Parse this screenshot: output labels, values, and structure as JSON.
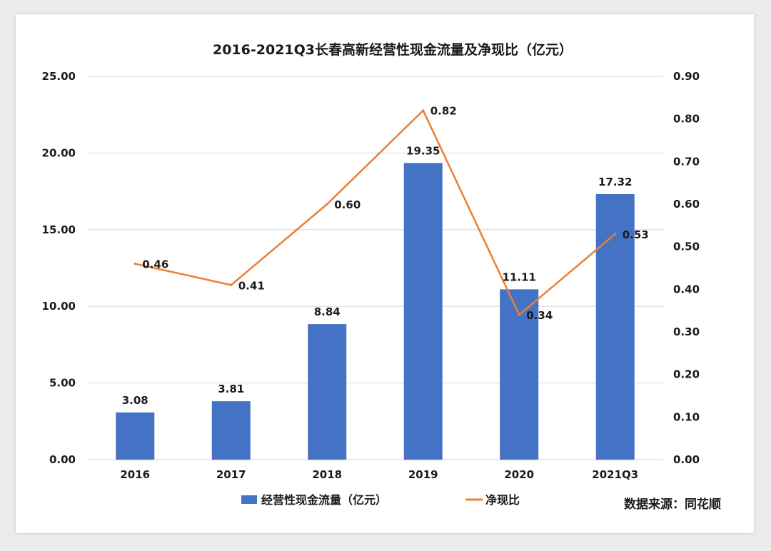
{
  "chart_data": {
    "type": "bar",
    "title": "2016-2021Q3长春高新经营性现金流量及净现比（亿元）",
    "categories": [
      "2016",
      "2017",
      "2018",
      "2019",
      "2020",
      "2021Q3"
    ],
    "series": [
      {
        "name": "经营性现金流量（亿元）",
        "type": "bar",
        "axis": "left",
        "color": "#4472c4",
        "values": [
          3.08,
          3.81,
          8.84,
          19.35,
          11.11,
          17.32
        ],
        "labels": [
          "3.08",
          "3.81",
          "8.84",
          "19.35",
          "11.11",
          "17.32"
        ]
      },
      {
        "name": "净现比",
        "type": "line",
        "axis": "right",
        "color": "#ed7d31",
        "values": [
          0.46,
          0.41,
          0.6,
          0.82,
          0.34,
          0.53
        ],
        "labels": [
          "0.46",
          "0.41",
          "0.60",
          "0.82",
          "0.34",
          "0.53"
        ]
      }
    ],
    "y_left": {
      "ylim": [
        0,
        25
      ],
      "ticks": [
        "0.00",
        "5.00",
        "10.00",
        "15.00",
        "20.00",
        "25.00"
      ]
    },
    "y_right": {
      "ylim": [
        0,
        0.9
      ],
      "ticks": [
        "0.00",
        "0.10",
        "0.20",
        "0.30",
        "0.40",
        "0.50",
        "0.60",
        "0.70",
        "0.80",
        "0.90"
      ]
    },
    "grid": true,
    "legend": "bottom-center",
    "source": "数据来源：同花顺"
  }
}
